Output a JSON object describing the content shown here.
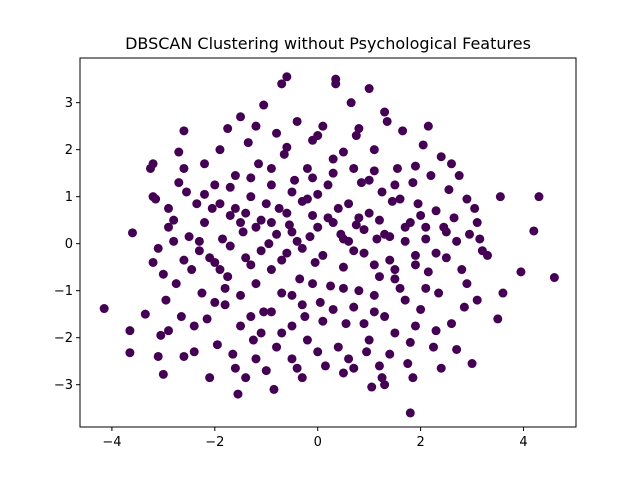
{
  "chart_data": {
    "type": "scatter",
    "title": "DBSCAN Clustering without Psychological Features",
    "xlabel": "",
    "ylabel": "",
    "xlim": [
      -4.62,
      5.02
    ],
    "ylim": [
      -3.9,
      3.95
    ],
    "xticks": [
      -4,
      -2,
      0,
      2,
      4
    ],
    "yticks": [
      -3,
      -2,
      -1,
      0,
      1,
      2,
      3
    ],
    "xtick_labels": [
      "−4",
      "−2",
      "0",
      "2",
      "4"
    ],
    "ytick_labels": [
      "−3",
      "−2",
      "−1",
      "0",
      "1",
      "2",
      "3"
    ],
    "grid": false,
    "legend": "none",
    "point_color": "#440154",
    "series": [
      {
        "values": [
          [
            -4.15,
            -1.38
          ],
          [
            -3.65,
            -1.85
          ],
          [
            -3.65,
            -2.32
          ],
          [
            -3.6,
            0.23
          ],
          [
            -3.35,
            -1.5
          ],
          [
            -3.25,
            1.6
          ],
          [
            -3.2,
            1.7
          ],
          [
            -3.2,
            1.0
          ],
          [
            -3.15,
            0.95
          ],
          [
            -3.2,
            -0.4
          ],
          [
            -3.1,
            -2.4
          ],
          [
            -3.05,
            -1.95
          ],
          [
            -3.1,
            -0.1
          ],
          [
            -3.0,
            -2.78
          ],
          [
            -3.0,
            -0.65
          ],
          [
            -2.95,
            -1.2
          ],
          [
            -2.9,
            0.35
          ],
          [
            -2.9,
            -1.85
          ],
          [
            -2.8,
            0.05
          ],
          [
            -2.8,
            0.5
          ],
          [
            -2.75,
            -0.85
          ],
          [
            -2.7,
            1.3
          ],
          [
            -2.7,
            1.95
          ],
          [
            -2.65,
            -1.55
          ],
          [
            -2.6,
            2.4
          ],
          [
            -2.6,
            -2.4
          ],
          [
            -2.55,
            1.1
          ],
          [
            -2.5,
            0.15
          ],
          [
            -2.45,
            -0.55
          ],
          [
            -2.4,
            -2.3
          ],
          [
            -2.35,
            0.85
          ],
          [
            -2.3,
            -0.15
          ],
          [
            -2.25,
            -1.05
          ],
          [
            -2.2,
            0.45
          ],
          [
            -2.2,
            1.7
          ],
          [
            -2.15,
            -1.6
          ],
          [
            -2.1,
            -2.85
          ],
          [
            -2.05,
            0.75
          ],
          [
            -2.0,
            1.25
          ],
          [
            -2.0,
            -0.4
          ],
          [
            -1.95,
            -2.15
          ],
          [
            -1.9,
            2.0
          ],
          [
            -1.85,
            0.1
          ],
          [
            -1.8,
            -1.3
          ],
          [
            -1.75,
            -0.7
          ],
          [
            -1.75,
            2.45
          ],
          [
            -1.7,
            0.6
          ],
          [
            -1.65,
            -2.35
          ],
          [
            -1.6,
            1.45
          ],
          [
            -1.55,
            -3.2
          ],
          [
            -1.5,
            2.7
          ],
          [
            -1.5,
            -1.75
          ],
          [
            -1.45,
            0.25
          ],
          [
            -1.4,
            -0.3
          ],
          [
            -1.35,
            2.15
          ],
          [
            -1.3,
            1.0
          ],
          [
            -1.25,
            -2.05
          ],
          [
            -1.2,
            -0.85
          ],
          [
            -1.15,
            1.7
          ],
          [
            -1.1,
            0.5
          ],
          [
            -1.05,
            -1.45
          ],
          [
            -1.05,
            2.95
          ],
          [
            -1.0,
            -2.7
          ],
          [
            -0.95,
            0.0
          ],
          [
            -0.9,
            1.25
          ],
          [
            -0.9,
            -0.55
          ],
          [
            -0.85,
            -3.1
          ],
          [
            -0.8,
            2.35
          ],
          [
            -0.75,
            0.75
          ],
          [
            -0.7,
            -1.9
          ],
          [
            -0.7,
            3.4
          ],
          [
            -0.65,
            1.9
          ],
          [
            -0.6,
            3.55
          ],
          [
            -0.6,
            -0.2
          ],
          [
            -0.55,
            0.4
          ],
          [
            -0.5,
            -2.45
          ],
          [
            -0.5,
            -1.1
          ],
          [
            -0.45,
            1.35
          ],
          [
            -0.4,
            2.6
          ],
          [
            -0.35,
            -0.75
          ],
          [
            -0.3,
            0.9
          ],
          [
            -0.25,
            -1.55
          ],
          [
            -0.2,
            1.6
          ],
          [
            -0.2,
            -2.05
          ],
          [
            -0.15,
            0.15
          ],
          [
            -0.1,
            2.2
          ],
          [
            -0.05,
            -0.4
          ],
          [
            0.0,
            1.05
          ],
          [
            0.05,
            -1.25
          ],
          [
            0.1,
            2.5
          ],
          [
            0.15,
            -2.6
          ],
          [
            0.2,
            0.55
          ],
          [
            0.25,
            -0.9
          ],
          [
            0.3,
            1.5
          ],
          [
            0.35,
            3.5
          ],
          [
            0.35,
            3.4
          ],
          [
            0.4,
            -2.2
          ],
          [
            0.45,
            0.2
          ],
          [
            0.5,
            1.95
          ],
          [
            0.5,
            -0.5
          ],
          [
            0.55,
            -1.7
          ],
          [
            0.6,
            0.85
          ],
          [
            0.65,
            3.0
          ],
          [
            0.7,
            -2.65
          ],
          [
            0.75,
            2.3
          ],
          [
            0.75,
            0.4
          ],
          [
            0.8,
            -1.0
          ],
          [
            0.85,
            1.3
          ],
          [
            0.9,
            -0.2
          ],
          [
            0.95,
            -2.3
          ],
          [
            1.0,
            3.3
          ],
          [
            1.0,
            0.65
          ],
          [
            1.05,
            -3.05
          ],
          [
            1.1,
            -1.45
          ],
          [
            1.1,
            2.0
          ],
          [
            1.15,
            0.1
          ],
          [
            1.2,
            -0.7
          ],
          [
            1.25,
            1.1
          ],
          [
            1.25,
            -2.85
          ],
          [
            1.3,
            -3.0
          ],
          [
            1.35,
            2.6
          ],
          [
            1.4,
            -0.35
          ],
          [
            1.45,
            0.9
          ],
          [
            1.5,
            -1.9
          ],
          [
            1.55,
            1.6
          ],
          [
            1.6,
            -0.95
          ],
          [
            1.65,
            2.4
          ],
          [
            1.7,
            0.35
          ],
          [
            1.75,
            -2.55
          ],
          [
            1.8,
            -3.6
          ],
          [
            1.85,
            1.3
          ],
          [
            1.85,
            -2.85
          ],
          [
            1.9,
            -0.25
          ],
          [
            1.95,
            0.85
          ],
          [
            2.0,
            -1.4
          ],
          [
            2.05,
            2.1
          ],
          [
            2.1,
            0.1
          ],
          [
            2.15,
            2.5
          ],
          [
            2.15,
            -0.6
          ],
          [
            2.2,
            1.45
          ],
          [
            2.25,
            -2.2
          ],
          [
            2.3,
            0.7
          ],
          [
            2.35,
            -1.05
          ],
          [
            2.4,
            1.85
          ],
          [
            2.45,
            0.35
          ],
          [
            2.5,
            -0.3
          ],
          [
            2.55,
            1.15
          ],
          [
            2.6,
            -1.7
          ],
          [
            2.65,
            0.55
          ],
          [
            2.7,
            -2.25
          ],
          [
            2.75,
            1.45
          ],
          [
            2.8,
            -0.55
          ],
          [
            2.85,
            -1.35
          ],
          [
            2.9,
            0.95
          ],
          [
            2.95,
            0.2
          ],
          [
            3.0,
            -2.55
          ],
          [
            3.05,
            0.75
          ],
          [
            3.1,
            -1.2
          ],
          [
            3.15,
            0.1
          ],
          [
            3.2,
            -0.15
          ],
          [
            3.3,
            -0.25
          ],
          [
            3.5,
            -1.6
          ],
          [
            3.55,
            1.0
          ],
          [
            3.6,
            -1.05
          ],
          [
            3.95,
            -0.6
          ],
          [
            4.2,
            0.27
          ],
          [
            4.3,
            1.0
          ],
          [
            4.6,
            -0.72
          ],
          [
            -1.9,
            0.85
          ],
          [
            -1.6,
            0.75
          ],
          [
            -1.4,
            0.65
          ],
          [
            -1.2,
            0.35
          ],
          [
            -1.0,
            0.85
          ],
          [
            -0.8,
            0.2
          ],
          [
            -0.6,
            0.65
          ],
          [
            -0.4,
            0.05
          ],
          [
            -0.2,
            0.95
          ],
          [
            0.0,
            0.35
          ],
          [
            0.2,
            1.25
          ],
          [
            0.4,
            0.75
          ],
          [
            0.6,
            0.05
          ],
          [
            0.8,
            0.55
          ],
          [
            1.0,
            1.35
          ],
          [
            1.2,
            0.5
          ],
          [
            1.4,
            0.15
          ],
          [
            1.6,
            0.95
          ],
          [
            1.8,
            0.45
          ],
          [
            2.0,
            0.6
          ],
          [
            -1.8,
            -0.95
          ],
          [
            -1.5,
            -1.1
          ],
          [
            -1.3,
            -1.55
          ],
          [
            -1.1,
            -1.9
          ],
          [
            -0.9,
            -1.45
          ],
          [
            -0.7,
            -1.05
          ],
          [
            -0.5,
            -1.75
          ],
          [
            -0.3,
            -1.3
          ],
          [
            -0.1,
            -0.85
          ],
          [
            0.1,
            -1.65
          ],
          [
            0.3,
            -1.4
          ],
          [
            0.5,
            -0.95
          ],
          [
            0.7,
            -1.35
          ],
          [
            0.9,
            -1.7
          ],
          [
            1.1,
            -1.1
          ],
          [
            1.3,
            -1.55
          ],
          [
            1.5,
            -0.75
          ],
          [
            1.7,
            -1.2
          ],
          [
            1.9,
            -1.75
          ],
          [
            2.1,
            -0.95
          ],
          [
            -2.3,
            0.05
          ],
          [
            -2.1,
            -0.3
          ],
          [
            -1.9,
            -0.55
          ],
          [
            -1.7,
            -0.05
          ],
          [
            -1.5,
            0.45
          ],
          [
            -1.3,
            -0.45
          ],
          [
            -1.1,
            -0.15
          ],
          [
            -0.9,
            0.45
          ],
          [
            -0.7,
            -0.35
          ],
          [
            -0.5,
            0.25
          ],
          [
            -0.3,
            -0.1
          ],
          [
            -0.1,
            0.6
          ],
          [
            0.1,
            -0.25
          ],
          [
            0.3,
            0.45
          ],
          [
            0.5,
            0.1
          ],
          [
            0.7,
            -0.15
          ],
          [
            0.9,
            0.3
          ],
          [
            1.1,
            -0.45
          ],
          [
            1.3,
            0.2
          ],
          [
            1.5,
            -0.55
          ],
          [
            1.7,
            0.05
          ],
          [
            1.9,
            -0.45
          ],
          [
            2.1,
            0.35
          ],
          [
            2.3,
            -0.2
          ],
          [
            2.5,
            0.25
          ],
          [
            -1.7,
            1.2
          ],
          [
            -1.3,
            1.4
          ],
          [
            -0.9,
            1.6
          ],
          [
            -0.5,
            1.1
          ],
          [
            -0.1,
            1.4
          ],
          [
            0.3,
            1.8
          ],
          [
            0.7,
            1.6
          ],
          [
            1.1,
            1.55
          ],
          [
            1.5,
            1.25
          ],
          [
            1.9,
            1.65
          ],
          [
            -1.6,
            -2.65
          ],
          [
            -1.2,
            -2.45
          ],
          [
            -0.8,
            -2.2
          ],
          [
            -0.4,
            -2.65
          ],
          [
            0.0,
            -2.3
          ],
          [
            0.6,
            -2.45
          ],
          [
            1.0,
            -2.05
          ],
          [
            1.4,
            -2.35
          ],
          [
            1.8,
            -2.1
          ],
          [
            2.3,
            -1.85
          ],
          [
            -2.9,
            0.75
          ],
          [
            -2.6,
            -0.35
          ],
          [
            -2.4,
            -1.75
          ],
          [
            -2.2,
            1.05
          ],
          [
            -2.0,
            -1.25
          ],
          [
            2.7,
            0.05
          ],
          [
            2.9,
            -0.85
          ],
          [
            3.1,
            0.45
          ],
          [
            2.6,
            1.7
          ],
          [
            2.4,
            -2.65
          ],
          [
            -0.6,
            2.05
          ],
          [
            0.0,
            2.3
          ],
          [
            0.8,
            2.45
          ],
          [
            1.3,
            2.8
          ],
          [
            -1.2,
            2.5
          ],
          [
            -0.3,
            -2.85
          ],
          [
            0.5,
            -2.75
          ],
          [
            1.2,
            -2.6
          ],
          [
            -1.4,
            -2.85
          ],
          [
            -2.6,
            1.6
          ]
        ]
      }
    ]
  }
}
